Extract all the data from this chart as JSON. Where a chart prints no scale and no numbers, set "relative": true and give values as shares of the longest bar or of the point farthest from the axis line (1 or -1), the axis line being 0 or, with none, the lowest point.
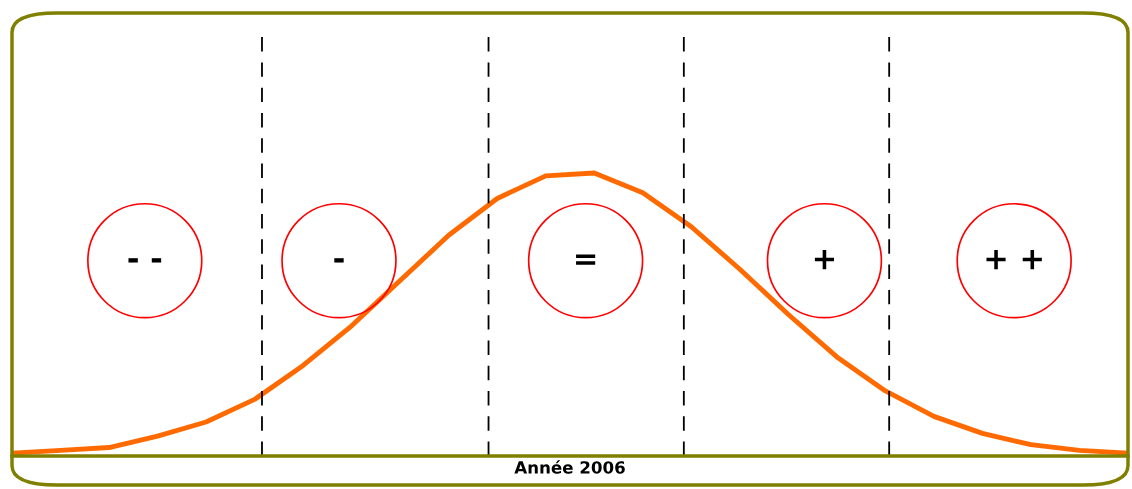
{
  "chart_data": {
    "type": "line",
    "relative": true,
    "xlabel": "Année 2006",
    "categories": [
      null,
      null,
      null,
      null,
      null,
      null,
      null,
      null,
      null,
      null,
      null,
      null,
      null,
      null,
      null,
      null,
      null,
      null,
      null,
      null,
      null,
      null,
      null,
      null
    ],
    "series": [
      {
        "color": "#ff6a00",
        "values": [
          0.01,
          0.02,
          0.03,
          0.07,
          0.12,
          0.2,
          0.32,
          0.46,
          0.62,
          0.78,
          0.91,
          0.99,
          1.0,
          0.93,
          0.81,
          0.66,
          0.5,
          0.35,
          0.23,
          0.14,
          0.08,
          0.04,
          0.02,
          0.01
        ]
      }
    ],
    "annotations": [
      "- -",
      "-",
      "=",
      "+",
      "+ +"
    ],
    "marker": "none",
    "line_style": "solid",
    "grid": false
  }
}
